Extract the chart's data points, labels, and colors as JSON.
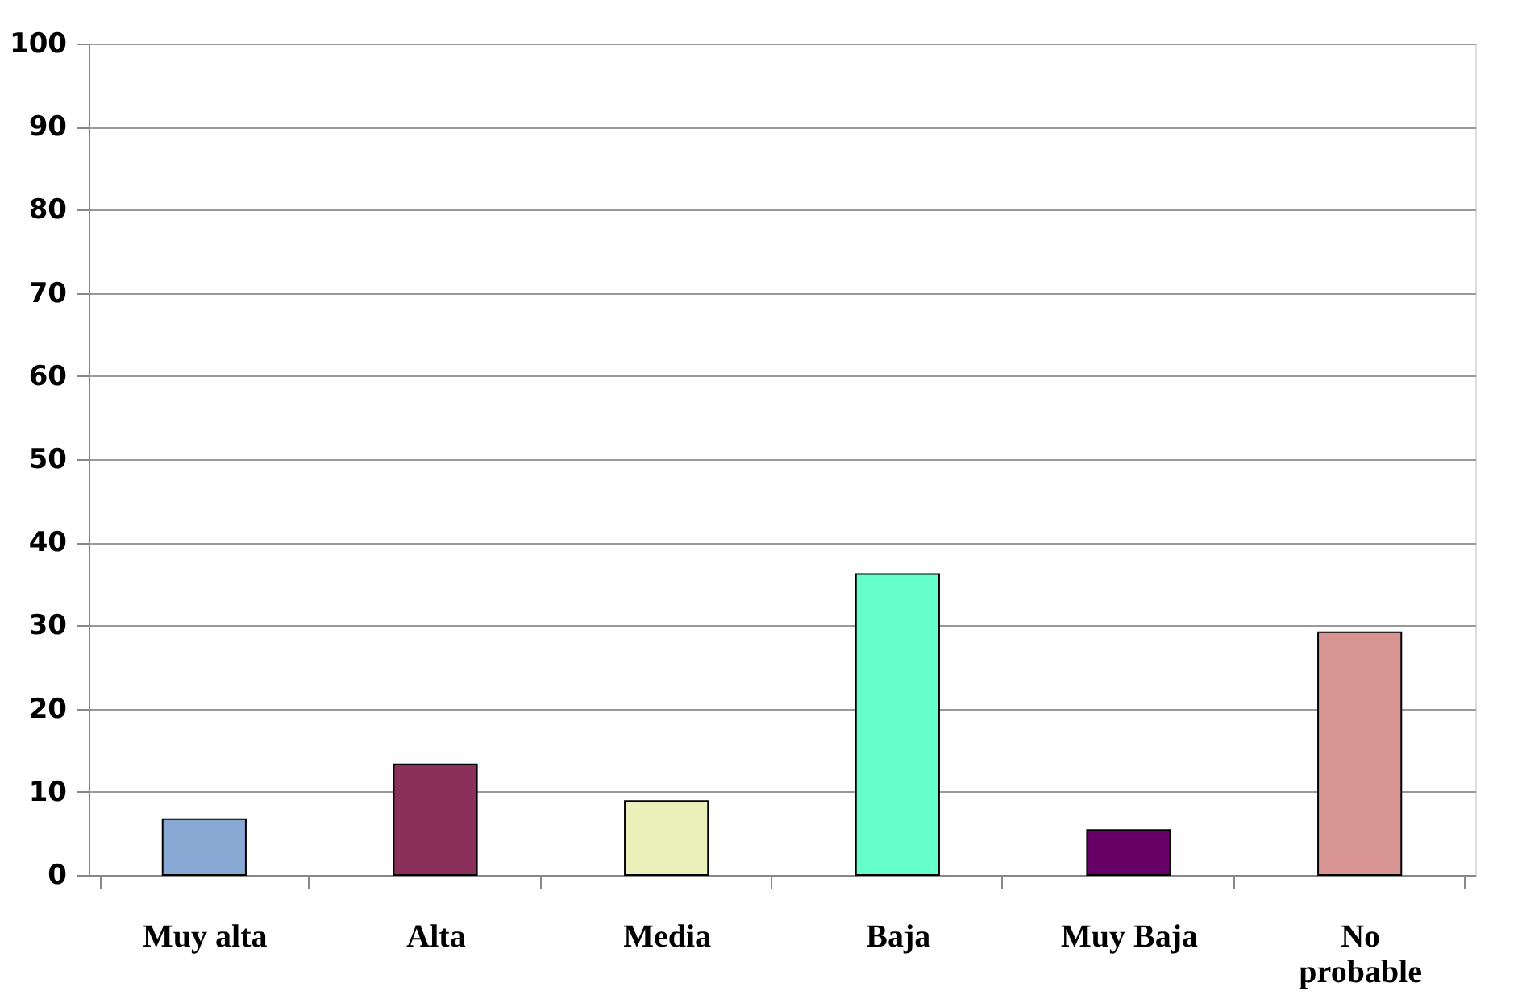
{
  "chart_data": {
    "type": "bar",
    "categories": [
      "Muy alta",
      "Alta",
      "Media",
      "Baja",
      "Muy Baja",
      "No probable"
    ],
    "values": [
      6.7,
      13.3,
      8.9,
      36.2,
      5.4,
      29.2
    ],
    "colors": [
      "#88a8d4",
      "#8b2f5b",
      "#ebf0bb",
      "#66ffcc",
      "#660066",
      "#d99594"
    ],
    "ylim": [
      0,
      100
    ],
    "yticks": [
      0,
      10,
      20,
      30,
      40,
      50,
      60,
      70,
      80,
      90,
      100
    ],
    "grid": "y"
  }
}
